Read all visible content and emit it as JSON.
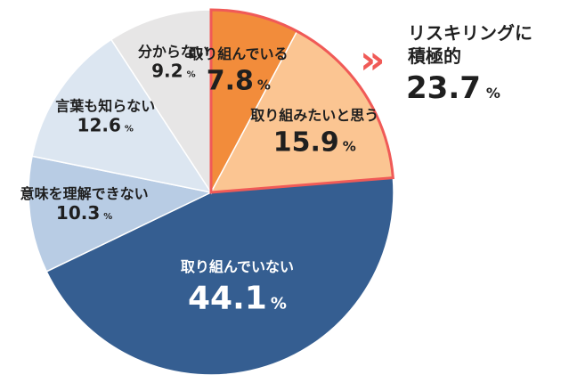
{
  "chart_data": {
    "type": "pie",
    "unit": "%",
    "slices": [
      {
        "label": "取り組んでいる",
        "value": 7.8,
        "color": "#f28c3b"
      },
      {
        "label": "取り組みたいと思う",
        "value": 15.9,
        "color": "#fbc592"
      },
      {
        "label": "取り組んでいない",
        "value": 44.1,
        "color": "#355e91"
      },
      {
        "label": "意味を理解できない",
        "value": 10.3,
        "color": "#b8cce4"
      },
      {
        "label": "言葉も知らない",
        "value": 12.6,
        "color": "#dce6f1"
      },
      {
        "label": "分からない",
        "value": 9.2,
        "color": "#e7e6e6"
      }
    ],
    "highlight": {
      "label_line1": "リスキリングに",
      "label_line2": "積極的",
      "value": 23.7,
      "border_color": "#f05a57",
      "arrow": "»"
    }
  }
}
